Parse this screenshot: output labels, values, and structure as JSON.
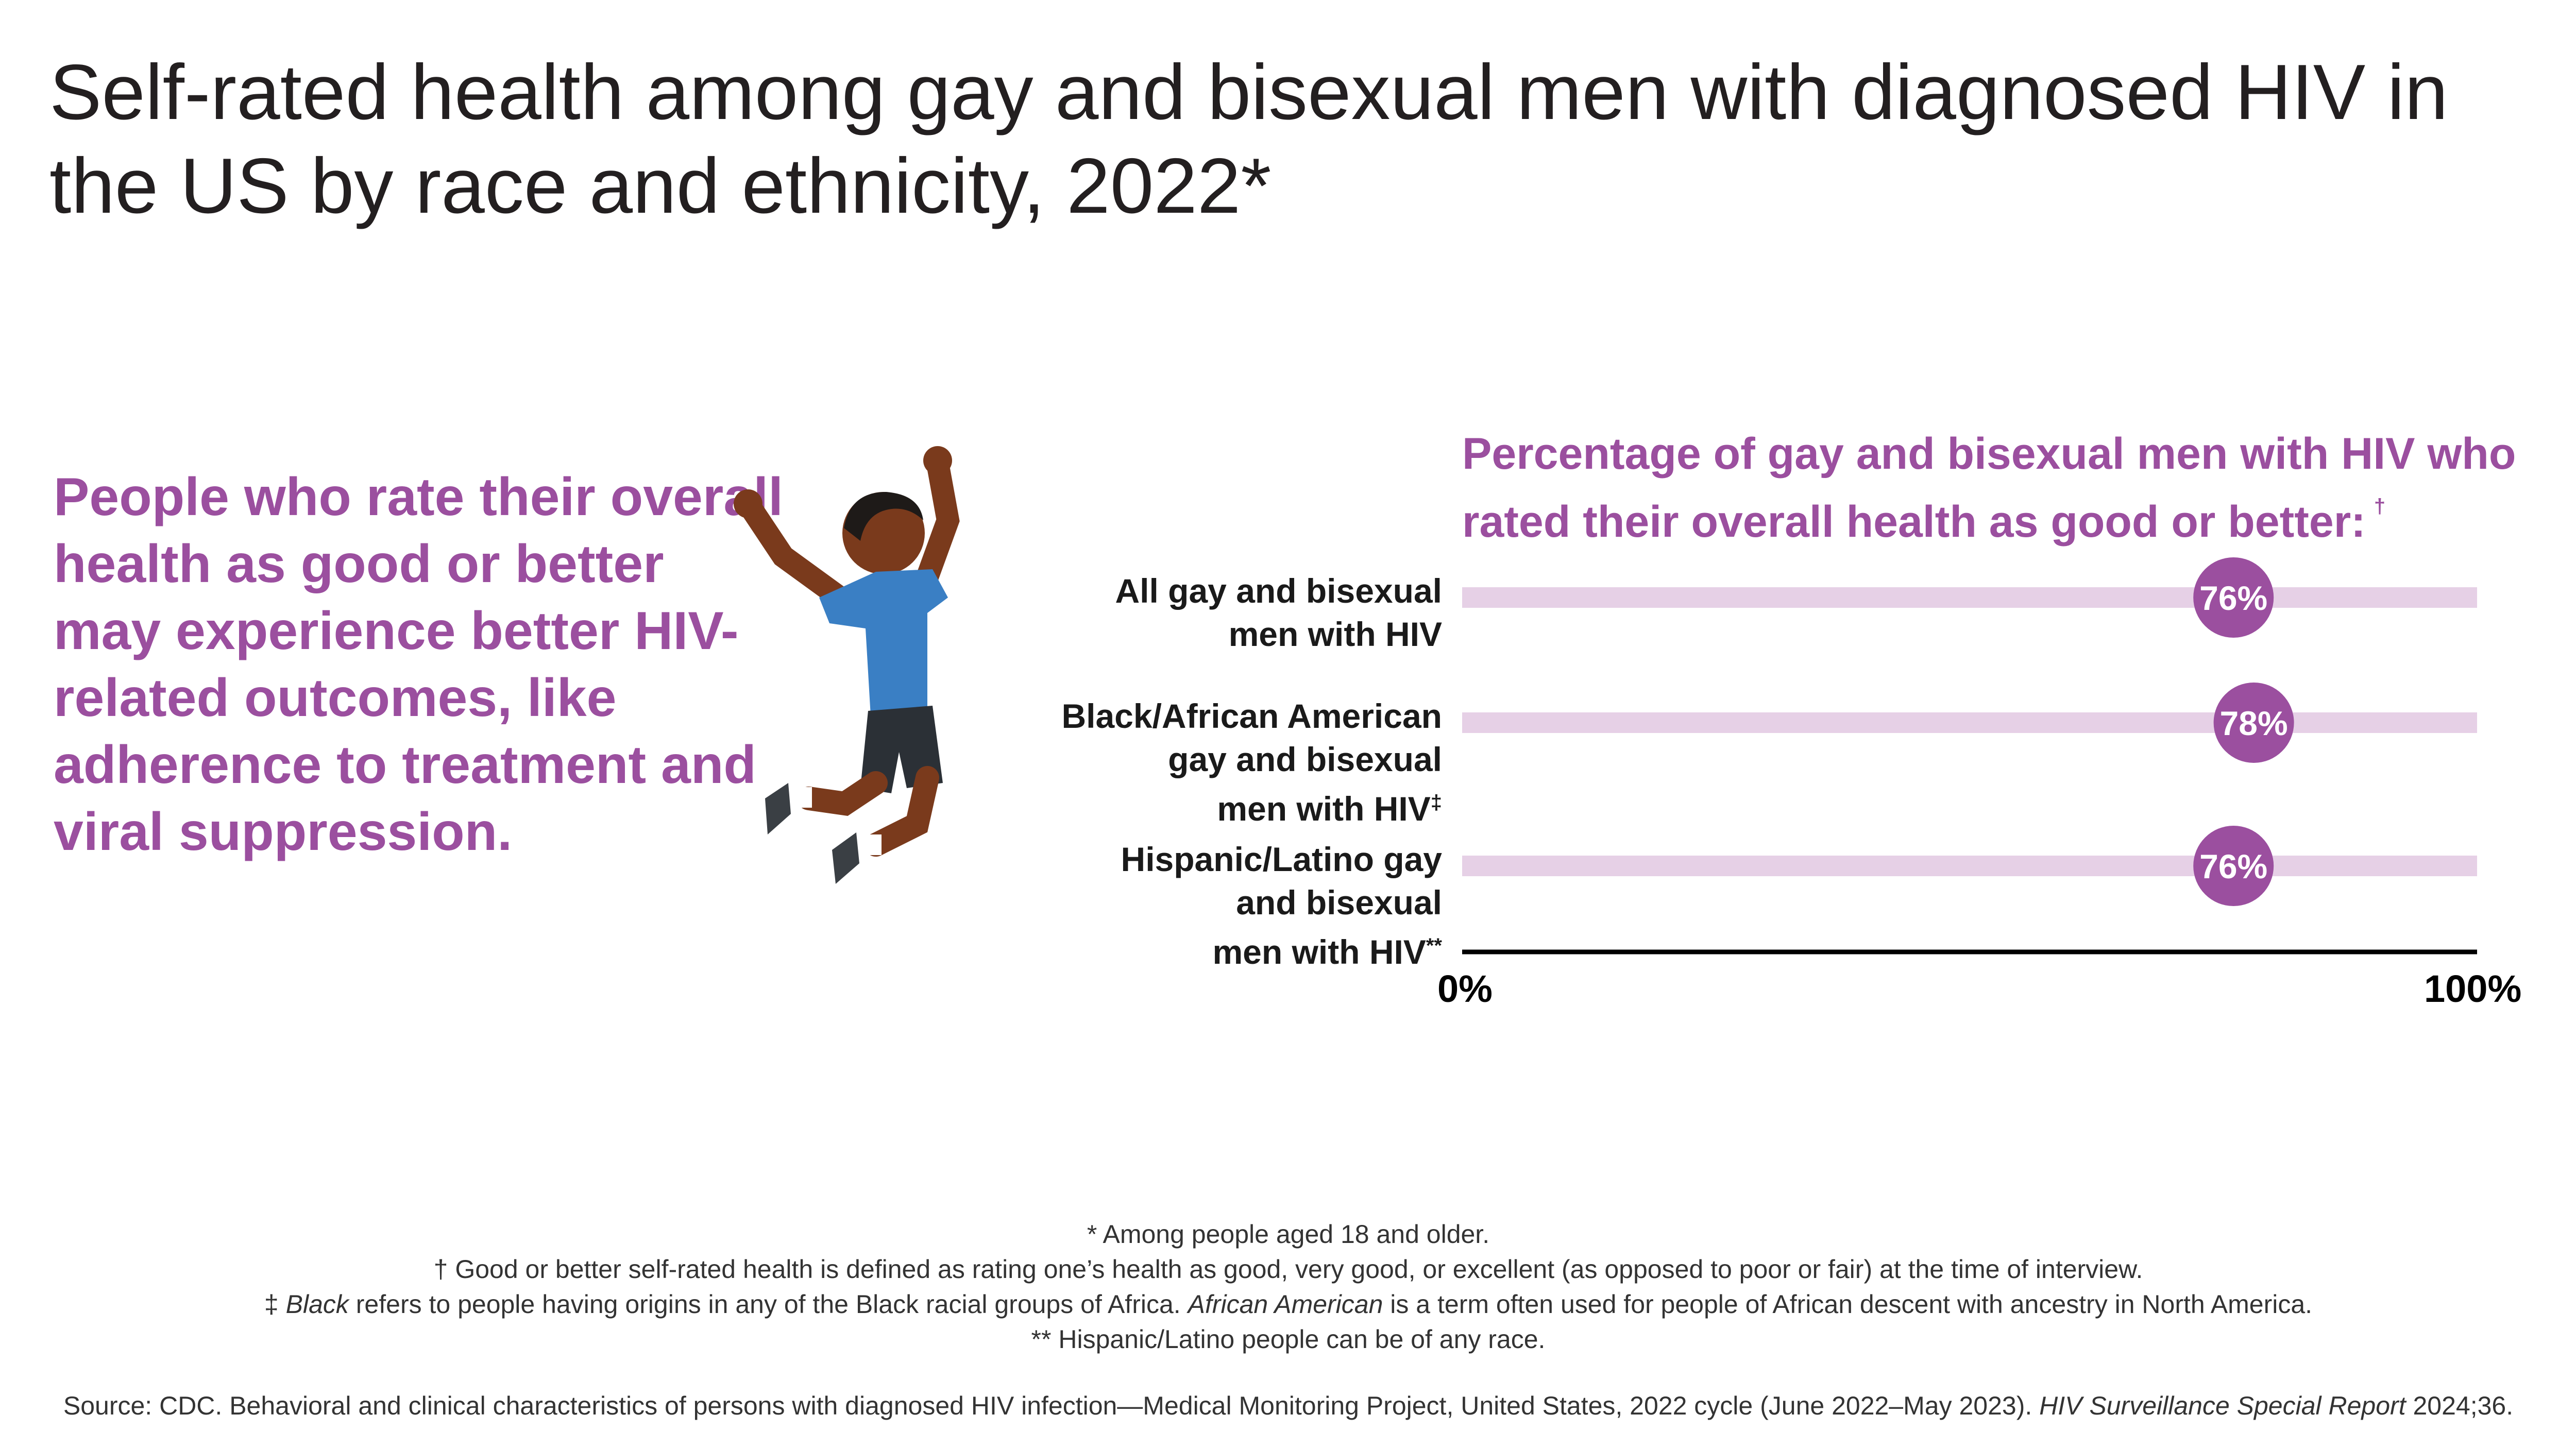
{
  "title": "Self-rated health among gay and bisexual men with diagnosed HIV in the US by race and ethnicity, 2022*",
  "callout": "People who rate their overall health as good or better may experience better HIV-related outcomes, like adherence to treatment and viral suppression.",
  "figure": {
    "icon": "jumping-person-illustration"
  },
  "colors": {
    "accent": "#9b4f9f",
    "track": "#e6d0e6",
    "dot": "#9b4f9f",
    "axis": "#000000",
    "skin": "#7a3a1c",
    "shirt": "#3a7fc4",
    "shorts": "#2b3036"
  },
  "chart_data": {
    "type": "dot",
    "title": "Percentage of gay and bisexual men with HIV who rated their overall health as good or better:",
    "title_marker": "†",
    "categories": [
      {
        "lines": [
          "All gay and bisexual",
          "men with HIV"
        ],
        "marker": ""
      },
      {
        "lines": [
          "Black/African American",
          "gay and bisexual",
          "men with HIV"
        ],
        "marker": "‡"
      },
      {
        "lines": [
          "Hispanic/Latino gay",
          "and bisexual",
          "men with HIV"
        ],
        "marker": "**"
      }
    ],
    "values": [
      76,
      78,
      76
    ],
    "value_labels": [
      "76%",
      "78%",
      "76%"
    ],
    "xlim": [
      0,
      100
    ],
    "x_ticks": [
      "0%",
      "100%"
    ],
    "grid": false
  },
  "footnotes": {
    "f1": "* Among people aged 18 and older.",
    "f2": "† Good or better self-rated health is defined as rating one’s health as good, very good, or excellent (as opposed to poor or fair) at the time of interview.",
    "f3_prefix": "‡ ",
    "f3_italic1": "Black",
    "f3_mid": " refers to people having origins in any of the Black racial groups of Africa. ",
    "f3_italic2": "African American",
    "f3_suffix": " is a term often used for people of African descent with ancestry in North America.",
    "f4": "** Hispanic/Latino people can be of any race."
  },
  "source": {
    "prefix": "Source: CDC. Behavioral and clinical characteristics of persons with diagnosed HIV infection—Medical Monitoring Project, United States, 2022 cycle (June 2022–May 2023). ",
    "italic": "HIV Surveillance Special Report",
    "suffix": " 2024;36."
  }
}
